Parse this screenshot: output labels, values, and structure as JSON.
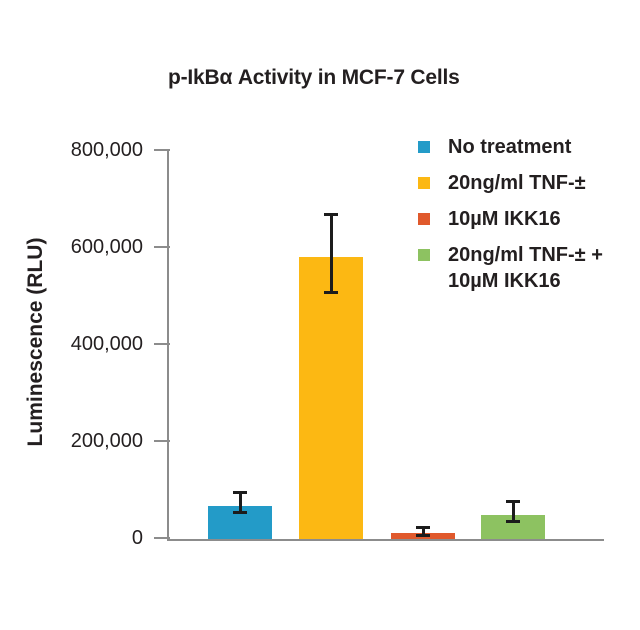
{
  "colors": {
    "background": "#ffffff",
    "text": "#231f20",
    "axis": "#8c8c8c",
    "error_bar": "#1c1c1c"
  },
  "chart_data": {
    "type": "bar",
    "title": "p-IkBα Activity in MCF-7 Cells",
    "ylabel": "Luminescence (RLU)",
    "xlabel": "",
    "ylim": [
      0,
      800000
    ],
    "yticks": [
      0,
      200000,
      400000,
      600000,
      800000
    ],
    "ytick_labels": [
      "0",
      "200,000",
      "400,000",
      "600,000",
      "800,000"
    ],
    "grid": false,
    "legend_position": "upper right",
    "categories": [
      "No treatment",
      "20ng/ml TNF-±",
      "10µM IKK16",
      "20ng/ml TNF-± + 10µM IKK16"
    ],
    "values": [
      66000,
      580000,
      11000,
      48000
    ],
    "error_high": [
      93000,
      668000,
      21000,
      76000
    ],
    "error_low": [
      52000,
      506000,
      5000,
      33000
    ],
    "bar_colors": [
      "#239BC8",
      "#FCB813",
      "#E0592C",
      "#8DC261"
    ],
    "legend": [
      {
        "label": "No treatment",
        "color": "#239BC8",
        "lines": [
          "No treatment"
        ]
      },
      {
        "label": "20ng/ml TNF-±",
        "color": "#FCB813",
        "lines": [
          "20ng/ml TNF-±"
        ]
      },
      {
        "label": "10µM IKK16",
        "color": "#E0592C",
        "lines": [
          "10µM IKK16"
        ]
      },
      {
        "label": "20ng/ml TNF-± + 10µM IKK16",
        "color": "#8DC261",
        "lines": [
          "20ng/ml TNF-± +",
          "10µM IKK16"
        ]
      }
    ]
  }
}
